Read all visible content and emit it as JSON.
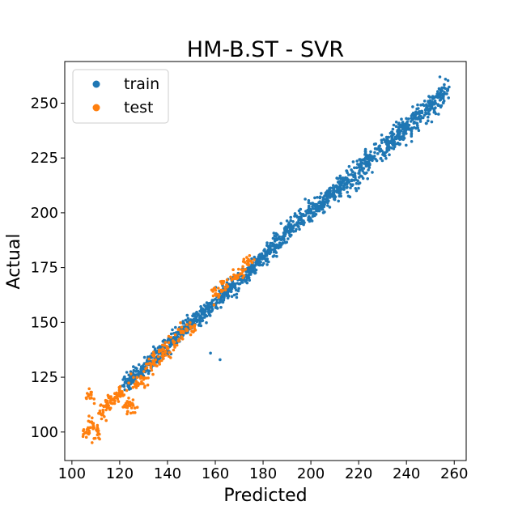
{
  "chart_data": {
    "type": "scatter",
    "title": "HM-B.ST - SVR",
    "xlabel": "Predicted",
    "ylabel": "Actual",
    "xlim": [
      97,
      265
    ],
    "ylim": [
      87,
      269
    ],
    "xticks": [
      100,
      120,
      140,
      160,
      180,
      200,
      220,
      240,
      260
    ],
    "yticks": [
      100,
      125,
      150,
      175,
      200,
      225,
      250
    ],
    "grid": false,
    "legend_position": "top-left",
    "series": [
      {
        "name": "train",
        "color": "#1f77b4",
        "trend": [
          [
            122,
            122
          ],
          [
            135,
            134
          ],
          [
            145,
            145
          ],
          [
            155,
            154
          ],
          [
            165,
            164
          ],
          [
            175,
            174
          ],
          [
            185,
            186
          ],
          [
            195,
            196
          ],
          [
            205,
            205
          ],
          [
            215,
            214
          ],
          [
            225,
            224
          ],
          [
            235,
            234
          ],
          [
            245,
            244
          ],
          [
            255,
            252
          ]
        ],
        "points": [
          [
            124,
            120
          ],
          [
            128,
            127
          ],
          [
            132,
            131
          ],
          [
            136,
            137
          ],
          [
            140,
            141
          ],
          [
            144,
            144
          ],
          [
            148,
            148
          ],
          [
            152,
            151
          ],
          [
            156,
            156
          ],
          [
            160,
            158
          ],
          [
            164,
            163
          ],
          [
            168,
            167
          ],
          [
            172,
            171
          ],
          [
            176,
            176
          ],
          [
            180,
            180
          ],
          [
            184,
            185
          ],
          [
            188,
            189
          ],
          [
            192,
            193
          ],
          [
            196,
            197
          ],
          [
            200,
            200
          ],
          [
            204,
            203
          ],
          [
            208,
            207
          ],
          [
            212,
            211
          ],
          [
            216,
            214
          ],
          [
            220,
            218
          ],
          [
            224,
            223
          ],
          [
            228,
            227
          ],
          [
            232,
            231
          ],
          [
            236,
            235
          ],
          [
            240,
            239
          ],
          [
            244,
            243
          ],
          [
            248,
            247
          ],
          [
            252,
            251
          ],
          [
            254,
            262
          ],
          [
            162,
            133
          ],
          [
            158,
            136
          ]
        ]
      },
      {
        "name": "test",
        "color": "#ff7f0e",
        "points": [
          [
            106,
            100
          ],
          [
            107,
            117
          ],
          [
            109,
            104
          ],
          [
            111,
            99
          ],
          [
            113,
            110
          ],
          [
            115,
            113
          ],
          [
            117,
            115
          ],
          [
            119,
            116
          ],
          [
            121,
            118
          ],
          [
            123,
            112
          ],
          [
            125,
            111
          ],
          [
            127,
            122
          ],
          [
            130,
            124
          ],
          [
            133,
            130
          ],
          [
            135,
            133
          ],
          [
            138,
            136
          ],
          [
            140,
            138
          ],
          [
            143,
            141
          ],
          [
            146,
            146
          ],
          [
            150,
            148
          ],
          [
            160,
            163
          ],
          [
            164,
            166
          ],
          [
            168,
            170
          ],
          [
            172,
            174
          ],
          [
            174,
            178
          ]
        ]
      }
    ]
  }
}
